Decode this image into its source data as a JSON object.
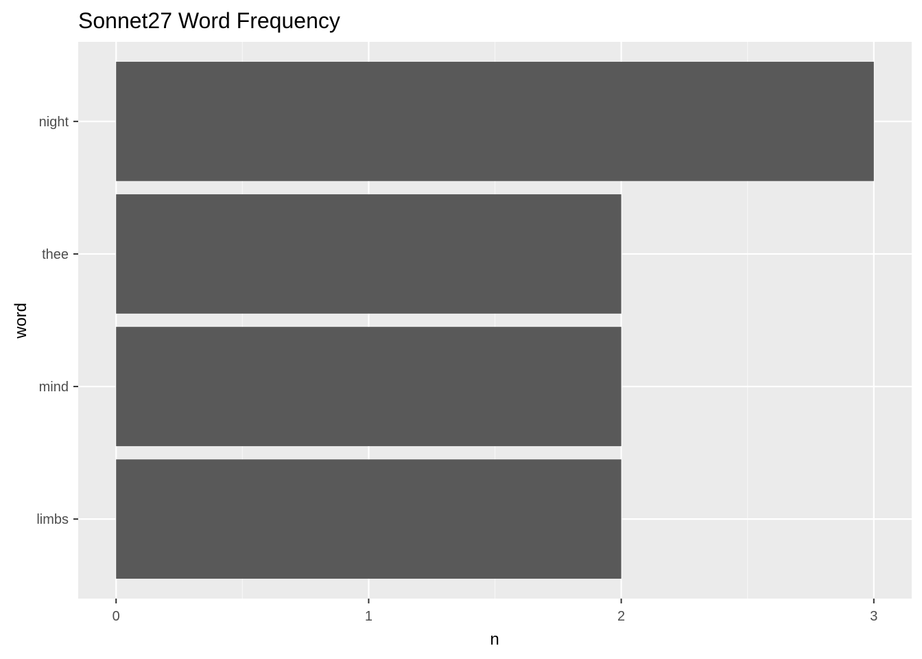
{
  "chart_data": {
    "type": "bar",
    "orientation": "horizontal",
    "title": "Sonnet27 Word Frequency",
    "xlabel": "n",
    "ylabel": "word",
    "categories": [
      "night",
      "thee",
      "mind",
      "limbs"
    ],
    "values": [
      3,
      2,
      2,
      2
    ],
    "xlim": [
      -0.15,
      3.15
    ],
    "x_ticks": [
      0,
      1,
      2,
      3
    ],
    "x_tick_labels": [
      "0",
      "1",
      "2",
      "3"
    ],
    "x_minor_ticks": [
      0.5,
      1.5,
      2.5
    ],
    "grid": true,
    "legend": "none",
    "colors": {
      "bar": "#595959",
      "panel": "#ebebeb",
      "grid_major": "#ffffff",
      "grid_minor": "#f7f7f7",
      "tick_text": "#4d4d4d",
      "tick_mark": "#333333"
    }
  }
}
